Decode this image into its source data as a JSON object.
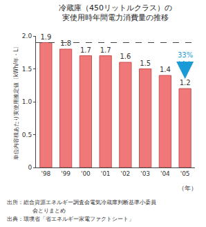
{
  "chart_data": {
    "type": "bar",
    "title": "冷蔵庫（450リットルクラス）の\n実使用時年間電力消費量の推移",
    "y_label": "単位内容積あたり実使用推定値〔kWh/年・L〕",
    "x_label": "（年）",
    "categories": [
      "'98",
      "'99",
      "'00",
      "'01",
      "'02",
      "'03",
      "'04",
      "'05"
    ],
    "values": [
      1.9,
      1.8,
      1.7,
      1.7,
      1.6,
      1.5,
      1.4,
      1.2
    ],
    "color": "#f07878",
    "ylim": [
      0,
      2.0
    ],
    "yticks": [
      0,
      0.5,
      {
        "value": 1.0,
        "label": "1.0"
      },
      1.5,
      {
        "value": 2.0,
        "label": "2.0"
      }
    ],
    "grid": false,
    "data_labels": true,
    "annotations": [
      {
        "text": [
          "33%",
          "減少"
        ],
        "color": "#1a9ad6"
      }
    ],
    "source": [
      "出所：総合資源エネルギー調査会電気冷蔵庫判断基準小委員",
      "会とりまとめ",
      "出典：環境省「省エネルギー家電ファクトシート」"
    ]
  }
}
